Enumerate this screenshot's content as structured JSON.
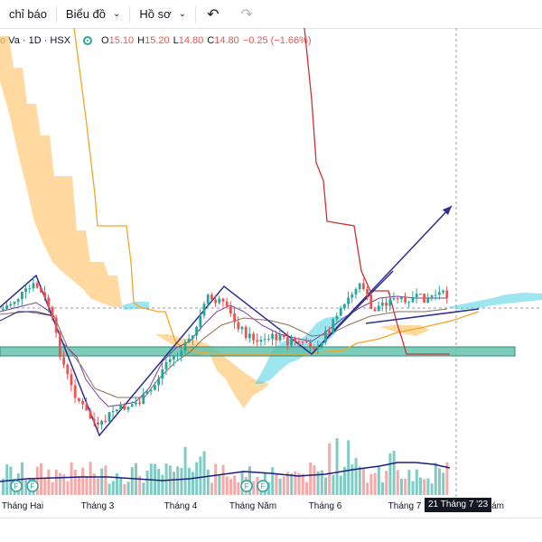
{
  "toolbar": {
    "indicators_label": "chỉ báo",
    "charts_label": "Biểu đồ",
    "profile_label": "Hồ sơ",
    "undo_icon": "undo-icon",
    "redo_icon": "redo-icon"
  },
  "legend": {
    "symbol": "o Va · 1D · HSX",
    "o_label": "O",
    "o_value": "15.10",
    "h_label": "H",
    "h_value": "15.20",
    "l_label": "L",
    "l_value": "14.80",
    "c_label": "C",
    "c_value": "14.80",
    "change": "−0.25 (−1.66%)"
  },
  "x_axis": {
    "ticks": [
      "Tháng Hai",
      "Tháng 3",
      "Tháng 4",
      "Tháng Năm",
      "Tháng 6",
      "Tháng 7",
      "Tám"
    ],
    "cursor_label": "21 Tháng 7 '23"
  },
  "markers": {
    "earnings_label": "F"
  },
  "colors": {
    "up": "#26a69a",
    "down": "#ef5350",
    "cloud_bear": "#ffcc80",
    "cloud_bull": "#4dd0e1",
    "kijun": "#d32f2f",
    "chikou": "#f5a623",
    "trendline": "#2f2f8f",
    "support_zone": "#5cbfa9"
  },
  "chart_data": {
    "type": "candlestick",
    "timeframe": "1D",
    "exchange": "HSX",
    "last_ohlc": {
      "open": 15.1,
      "high": 15.2,
      "low": 14.8,
      "close": 14.8,
      "change": -0.25,
      "change_pct": -1.66
    },
    "months": [
      "Tháng Hai",
      "Tháng 3",
      "Tháng 4",
      "Tháng Năm",
      "Tháng 6",
      "Tháng 7"
    ],
    "trend_swings": [
      {
        "date": "Tháng Hai",
        "price": 14.0
      },
      {
        "date": "Tháng 3",
        "price": 10.6
      },
      {
        "date": "Tháng 4",
        "price": 14.3
      },
      {
        "date": "Tháng Năm",
        "price": 12.6
      },
      {
        "date": "Tháng 6",
        "price": 12.6
      },
      {
        "date": "Tháng 7",
        "price": 17.3
      }
    ],
    "support_zone": [
      12.5,
      12.8
    ],
    "indicators": [
      "Ichimoku Cloud",
      "Volume"
    ]
  }
}
